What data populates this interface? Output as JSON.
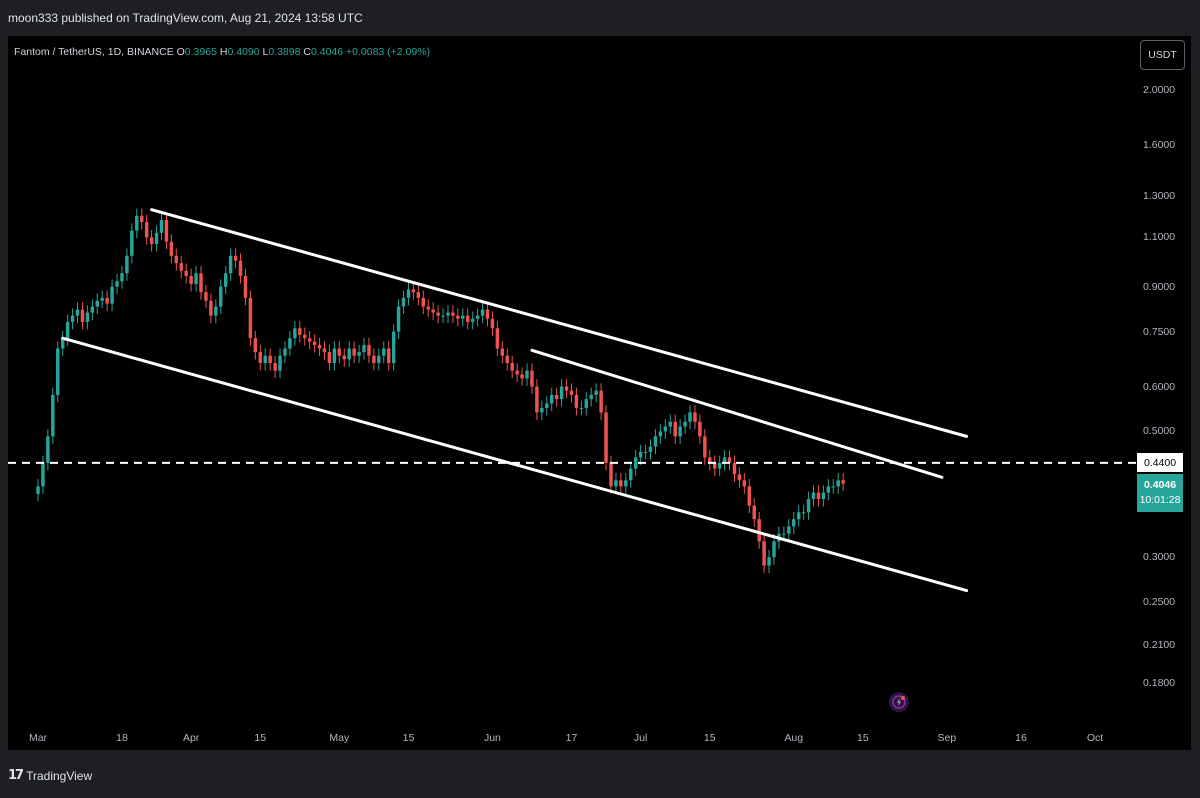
{
  "header": {
    "published": "moon333 published on TradingView.com, Aug 21, 2024 13:58 UTC"
  },
  "footer": {
    "brand": "TradingView",
    "logo_icon": "tradingview-logo-icon"
  },
  "legend": {
    "symbol": "Fantom / TetherUS, 1D, BINANCE",
    "open_label": "O",
    "open": "0.3965",
    "high_label": "H",
    "high": "0.4090",
    "low_label": "L",
    "low": "0.3898",
    "close_label": "C",
    "close": "0.4046",
    "change": "+0.0083 (+2.09%)"
  },
  "currency_button": "USDT",
  "price_tag": {
    "price": "0.4046",
    "countdown": "10:01:28"
  },
  "level_tag": "0.4400",
  "bolt_icon": "lightning-icon",
  "colors": {
    "up": "#26a69a",
    "down": "#ef5350",
    "background": "#000000",
    "lines": "#ffffff"
  },
  "chart_data": {
    "type": "candlestick",
    "scale": "log",
    "y_ticks": [
      "2.0000",
      "1.6000",
      "1.3000",
      "1.1000",
      "0.9000",
      "0.7500",
      "0.6000",
      "0.5000",
      "0.4400",
      "0.3000",
      "0.2500",
      "0.2100",
      "0.1800"
    ],
    "x_ticks": [
      "Mar",
      "18",
      "Apr",
      "15",
      "May",
      "15",
      "Jun",
      "17",
      "Jul",
      "15",
      "Aug",
      "15",
      "Sep",
      "16",
      "Oct"
    ],
    "x_range": [
      "2024-03-01",
      "2024-10-02"
    ],
    "y_range": [
      0.16,
      2.2
    ],
    "candles_start": "2024-03-01",
    "closes": [
      0.4,
      0.44,
      0.49,
      0.58,
      0.7,
      0.73,
      0.78,
      0.8,
      0.82,
      0.78,
      0.81,
      0.83,
      0.85,
      0.86,
      0.84,
      0.9,
      0.92,
      0.95,
      1.02,
      1.13,
      1.2,
      1.17,
      1.1,
      1.07,
      1.12,
      1.18,
      1.08,
      1.02,
      0.99,
      0.96,
      0.94,
      0.91,
      0.95,
      0.88,
      0.85,
      0.8,
      0.83,
      0.9,
      0.95,
      1.02,
      1.0,
      0.94,
      0.86,
      0.73,
      0.69,
      0.66,
      0.68,
      0.66,
      0.64,
      0.68,
      0.7,
      0.73,
      0.76,
      0.74,
      0.73,
      0.72,
      0.71,
      0.7,
      0.69,
      0.66,
      0.7,
      0.68,
      0.67,
      0.7,
      0.68,
      0.69,
      0.71,
      0.68,
      0.66,
      0.68,
      0.7,
      0.66,
      0.75,
      0.83,
      0.86,
      0.89,
      0.88,
      0.86,
      0.83,
      0.82,
      0.81,
      0.8,
      0.8,
      0.81,
      0.8,
      0.79,
      0.8,
      0.78,
      0.79,
      0.8,
      0.82,
      0.79,
      0.76,
      0.7,
      0.68,
      0.66,
      0.64,
      0.63,
      0.62,
      0.64,
      0.6,
      0.54,
      0.55,
      0.56,
      0.58,
      0.57,
      0.6,
      0.59,
      0.58,
      0.55,
      0.55,
      0.57,
      0.58,
      0.59,
      0.54,
      0.44,
      0.4,
      0.41,
      0.4,
      0.41,
      0.43,
      0.45,
      0.46,
      0.46,
      0.47,
      0.49,
      0.5,
      0.51,
      0.52,
      0.49,
      0.51,
      0.52,
      0.54,
      0.52,
      0.49,
      0.45,
      0.44,
      0.43,
      0.44,
      0.45,
      0.44,
      0.42,
      0.41,
      0.4,
      0.37,
      0.35,
      0.32,
      0.29,
      0.3,
      0.32,
      0.33,
      0.33,
      0.34,
      0.35,
      0.36,
      0.36,
      0.38,
      0.39,
      0.38,
      0.39,
      0.4,
      0.4,
      0.41,
      0.4046
    ],
    "trendlines": [
      {
        "name": "upper-channel",
        "from": [
          "2024-03-24",
          1.23
        ],
        "to": [
          "2024-09-05",
          0.49
        ]
      },
      {
        "name": "lower-channel",
        "from": [
          "2024-03-06",
          0.73
        ],
        "to": [
          "2024-09-05",
          0.262
        ]
      },
      {
        "name": "inner-resistance",
        "from": [
          "2024-06-09",
          0.695
        ],
        "to": [
          "2024-08-31",
          0.415
        ]
      }
    ],
    "horizontal_level": 0.44
  }
}
